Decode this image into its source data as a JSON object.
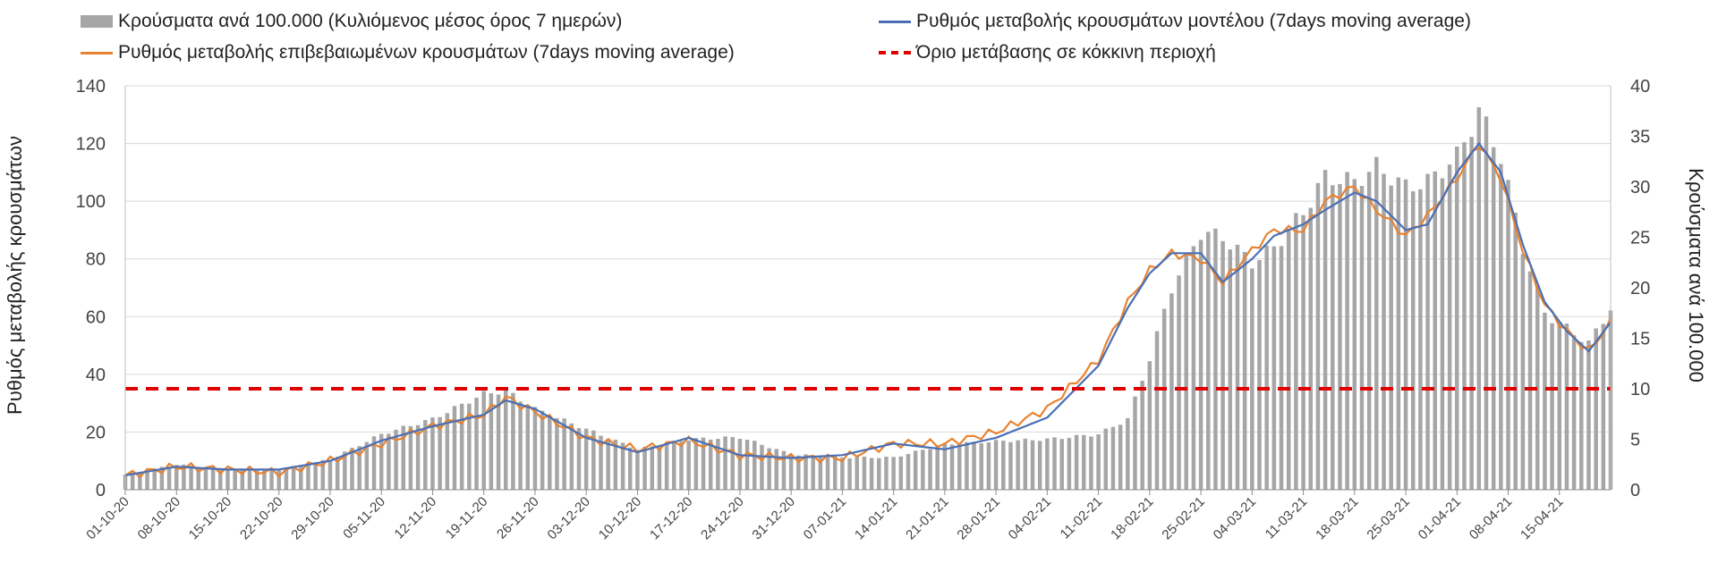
{
  "legend": {
    "bars": "Κρούσματα ανά 100.000 (Κυλιόμενος μέσος όρος 7 ημερών)",
    "model": "Ρυθμός μεταβολής κρουσμάτων μοντέλου (7days moving average)",
    "confirmed": "Ρυθμός μεταβολής επιβεβαιωμένων κρουσμάτων (7days moving average)",
    "threshold": "Όριο μετάβασης σε κόκκινη περιοχή"
  },
  "colors": {
    "bars": "#a6a6a6",
    "model": "#4a6fb5",
    "confirmed": "#e8822f",
    "threshold": "#e00000",
    "grid": "#d9d9d9"
  },
  "chart_data": {
    "type": "bar+line",
    "title": "",
    "ylabel_left": "Ρυθμός μεταβολής κρουσμάτων",
    "ylabel_right": "Κρούσματα ανά 100.000",
    "ylim_left": [
      0,
      140
    ],
    "ylim_right": [
      0,
      40
    ],
    "yticks_left": [
      0,
      20,
      40,
      60,
      80,
      100,
      120,
      140
    ],
    "yticks_right": [
      0,
      5,
      10,
      15,
      20,
      25,
      30,
      35,
      40
    ],
    "x_tick_labels": [
      "01-10-20",
      "08-10-20",
      "15-10-20",
      "22-10-20",
      "29-10-20",
      "05-11-20",
      "12-11-20",
      "19-11-20",
      "26-11-20",
      "03-12-20",
      "10-12-20",
      "17-12-20",
      "24-12-20",
      "31-12-20",
      "07-01-21",
      "14-01-21",
      "21-01-21",
      "28-01-21",
      "04-02-21",
      "11-02-21",
      "18-02-21",
      "25-02-21",
      "04-03-21",
      "11-03-21",
      "18-03-21",
      "25-03-21",
      "01-04-21",
      "08-04-21",
      "15-04-21"
    ],
    "days": 197,
    "bar_anchors_right_axis": [
      [
        0,
        1.5
      ],
      [
        7,
        2.5
      ],
      [
        14,
        2
      ],
      [
        21,
        2
      ],
      [
        28,
        3
      ],
      [
        35,
        5.5
      ],
      [
        42,
        7
      ],
      [
        49,
        9.5
      ],
      [
        52,
        9.8
      ],
      [
        56,
        8
      ],
      [
        63,
        6
      ],
      [
        70,
        4
      ],
      [
        77,
        5
      ],
      [
        84,
        5.2
      ],
      [
        91,
        3.5
      ],
      [
        98,
        3.2
      ],
      [
        105,
        3.2
      ],
      [
        112,
        4.5
      ],
      [
        119,
        4.8
      ],
      [
        126,
        5
      ],
      [
        133,
        5.5
      ],
      [
        137,
        7
      ],
      [
        140,
        13
      ],
      [
        143,
        20
      ],
      [
        147,
        25.5
      ],
      [
        150,
        25
      ],
      [
        154,
        22.5
      ],
      [
        157,
        24
      ],
      [
        161,
        27.5
      ],
      [
        164,
        31
      ],
      [
        168,
        30.5
      ],
      [
        171,
        32
      ],
      [
        175,
        30
      ],
      [
        178,
        30.5
      ],
      [
        182,
        33
      ],
      [
        185,
        37.5
      ],
      [
        188,
        33
      ],
      [
        191,
        24
      ],
      [
        194,
        17.5
      ],
      [
        197,
        16
      ],
      [
        200,
        14.5
      ],
      [
        203,
        18
      ]
    ],
    "model_anchors_left_axis": [
      [
        0,
        5
      ],
      [
        7,
        8
      ],
      [
        14,
        7
      ],
      [
        21,
        7
      ],
      [
        28,
        10
      ],
      [
        35,
        17
      ],
      [
        42,
        22
      ],
      [
        49,
        26
      ],
      [
        52,
        31
      ],
      [
        56,
        28
      ],
      [
        63,
        18
      ],
      [
        70,
        13
      ],
      [
        77,
        18
      ],
      [
        84,
        12
      ],
      [
        91,
        11
      ],
      [
        98,
        12
      ],
      [
        105,
        16
      ],
      [
        112,
        14
      ],
      [
        119,
        18
      ],
      [
        126,
        25
      ],
      [
        133,
        43
      ],
      [
        137,
        63
      ],
      [
        140,
        75
      ],
      [
        143,
        82
      ],
      [
        147,
        82
      ],
      [
        150,
        72
      ],
      [
        154,
        80
      ],
      [
        157,
        88
      ],
      [
        161,
        92
      ],
      [
        164,
        97
      ],
      [
        168,
        103
      ],
      [
        171,
        100
      ],
      [
        175,
        90
      ],
      [
        178,
        92
      ],
      [
        182,
        110
      ],
      [
        185,
        120
      ],
      [
        188,
        110
      ],
      [
        191,
        85
      ],
      [
        194,
        65
      ],
      [
        197,
        55
      ],
      [
        200,
        48
      ],
      [
        203,
        58
      ]
    ],
    "confirmed_anchors_left_axis": [
      [
        0,
        5
      ],
      [
        7,
        8
      ],
      [
        14,
        7
      ],
      [
        21,
        6
      ],
      [
        28,
        10
      ],
      [
        35,
        16
      ],
      [
        42,
        22
      ],
      [
        49,
        26
      ],
      [
        52,
        32
      ],
      [
        56,
        27
      ],
      [
        63,
        18
      ],
      [
        70,
        14
      ],
      [
        77,
        17
      ],
      [
        84,
        12
      ],
      [
        91,
        11
      ],
      [
        98,
        11
      ],
      [
        105,
        16
      ],
      [
        112,
        16
      ],
      [
        119,
        20
      ],
      [
        126,
        28
      ],
      [
        133,
        45
      ],
      [
        137,
        65
      ],
      [
        140,
        76
      ],
      [
        143,
        82
      ],
      [
        147,
        80
      ],
      [
        150,
        72
      ],
      [
        154,
        83
      ],
      [
        157,
        90
      ],
      [
        161,
        90
      ],
      [
        164,
        100
      ],
      [
        168,
        105
      ],
      [
        171,
        97
      ],
      [
        175,
        88
      ],
      [
        178,
        95
      ],
      [
        182,
        108
      ],
      [
        185,
        120
      ],
      [
        188,
        108
      ],
      [
        191,
        83
      ],
      [
        194,
        64
      ],
      [
        197,
        55
      ],
      [
        200,
        48
      ],
      [
        203,
        58
      ]
    ],
    "threshold_left_axis": 35
  }
}
